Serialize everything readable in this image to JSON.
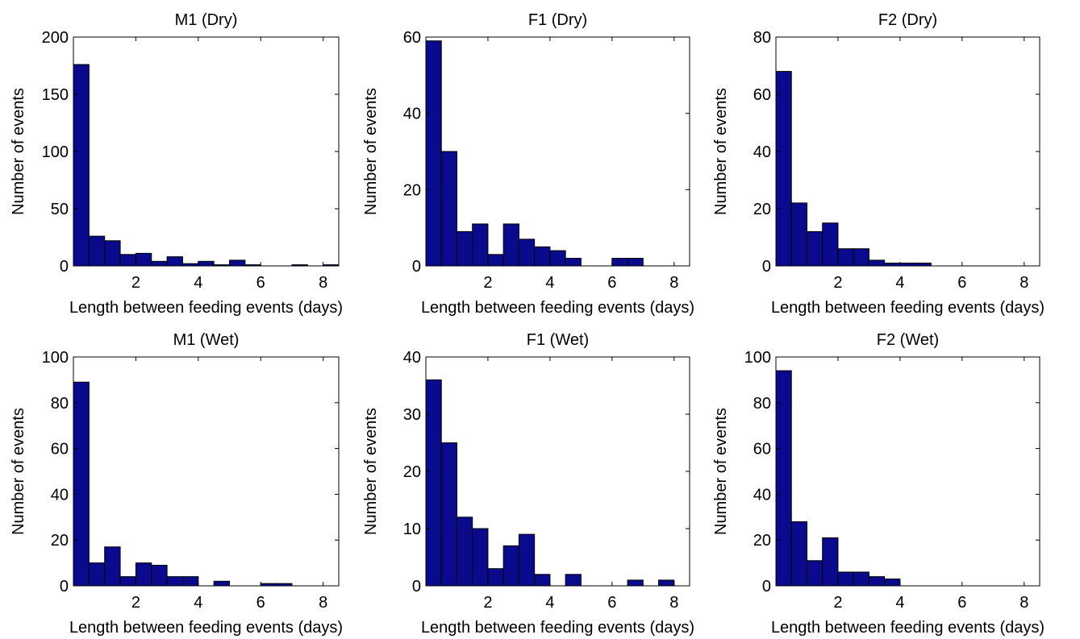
{
  "figure": {
    "bar_color": "#0a0a8c",
    "bar_edge_color": "#000000"
  },
  "chart_data": [
    {
      "type": "bar",
      "title": "M1 (Dry)",
      "xlabel": "Length between feeding events (days)",
      "ylabel": "Number of events",
      "xlim": [
        0,
        8.5
      ],
      "ylim": [
        0,
        200
      ],
      "xticks": [
        2,
        4,
        6,
        8
      ],
      "yticks": [
        0,
        50,
        100,
        150,
        200
      ],
      "bin_width": 0.5,
      "bin_starts": [
        0,
        0.5,
        1,
        1.5,
        2,
        2.5,
        3,
        3.5,
        4,
        4.5,
        5,
        5.5,
        6,
        6.5,
        7,
        7.5,
        8
      ],
      "values": [
        176,
        26,
        22,
        10,
        11,
        4,
        8,
        2,
        4,
        1,
        5,
        1,
        0,
        0,
        1,
        0,
        1
      ],
      "grid": false
    },
    {
      "type": "bar",
      "title": "F1 (Dry)",
      "xlabel": "Length between feeding events (days)",
      "ylabel": "Number of events",
      "xlim": [
        0,
        8.5
      ],
      "ylim": [
        0,
        60
      ],
      "xticks": [
        2,
        4,
        6,
        8
      ],
      "yticks": [
        0,
        20,
        40,
        60
      ],
      "bin_width": 0.5,
      "bin_starts": [
        0,
        0.5,
        1,
        1.5,
        2,
        2.5,
        3,
        3.5,
        4,
        4.5,
        5,
        5.5,
        6,
        6.5,
        7,
        7.5,
        8
      ],
      "values": [
        59,
        30,
        9,
        11,
        3,
        11,
        7,
        5,
        4,
        2,
        0,
        0,
        2,
        2,
        0,
        0,
        0
      ],
      "grid": false
    },
    {
      "type": "bar",
      "title": "F2 (Dry)",
      "xlabel": "Length between feeding events (days)",
      "ylabel": "Number of events",
      "xlim": [
        0,
        8.5
      ],
      "ylim": [
        0,
        80
      ],
      "xticks": [
        2,
        4,
        6,
        8
      ],
      "yticks": [
        0,
        20,
        40,
        60,
        80
      ],
      "bin_width": 0.5,
      "bin_starts": [
        0,
        0.5,
        1,
        1.5,
        2,
        2.5,
        3,
        3.5,
        4,
        4.5,
        5,
        5.5,
        6,
        6.5,
        7,
        7.5,
        8
      ],
      "values": [
        68,
        22,
        12,
        15,
        6,
        6,
        2,
        1,
        1,
        1,
        0,
        0,
        0,
        0,
        0,
        0,
        0
      ],
      "grid": false
    },
    {
      "type": "bar",
      "title": "M1 (Wet)",
      "xlabel": "Length between feeding events (days)",
      "ylabel": "Number of events",
      "xlim": [
        0,
        8.5
      ],
      "ylim": [
        0,
        100
      ],
      "xticks": [
        2,
        4,
        6,
        8
      ],
      "yticks": [
        0,
        20,
        40,
        60,
        80,
        100
      ],
      "bin_width": 0.5,
      "bin_starts": [
        0,
        0.5,
        1,
        1.5,
        2,
        2.5,
        3,
        3.5,
        4,
        4.5,
        5,
        5.5,
        6,
        6.5,
        7,
        7.5,
        8
      ],
      "values": [
        89,
        10,
        17,
        4,
        10,
        9,
        4,
        4,
        0,
        2,
        0,
        0,
        1,
        1,
        0,
        0,
        0
      ],
      "grid": false
    },
    {
      "type": "bar",
      "title": "F1 (Wet)",
      "xlabel": "Length between feeding events (days)",
      "ylabel": "Number of events",
      "xlim": [
        0,
        8.5
      ],
      "ylim": [
        0,
        40
      ],
      "xticks": [
        2,
        4,
        6,
        8
      ],
      "yticks": [
        0,
        10,
        20,
        30,
        40
      ],
      "bin_width": 0.5,
      "bin_starts": [
        0,
        0.5,
        1,
        1.5,
        2,
        2.5,
        3,
        3.5,
        4,
        4.5,
        5,
        5.5,
        6,
        6.5,
        7,
        7.5,
        8
      ],
      "values": [
        36,
        25,
        12,
        10,
        3,
        7,
        9,
        2,
        0,
        2,
        0,
        0,
        0,
        1,
        0,
        1,
        0
      ],
      "grid": false
    },
    {
      "type": "bar",
      "title": "F2 (Wet)",
      "xlabel": "Length between feeding events (days)",
      "ylabel": "Number of events",
      "xlim": [
        0,
        8.5
      ],
      "ylim": [
        0,
        100
      ],
      "xticks": [
        2,
        4,
        6,
        8
      ],
      "yticks": [
        0,
        20,
        40,
        60,
        80,
        100
      ],
      "bin_width": 0.5,
      "bin_starts": [
        0,
        0.5,
        1,
        1.5,
        2,
        2.5,
        3,
        3.5,
        4,
        4.5,
        5,
        5.5,
        6,
        6.5,
        7,
        7.5,
        8
      ],
      "values": [
        94,
        28,
        11,
        21,
        6,
        6,
        4,
        3,
        0,
        0,
        0,
        0,
        0,
        0,
        0,
        0,
        0
      ],
      "grid": false
    }
  ]
}
